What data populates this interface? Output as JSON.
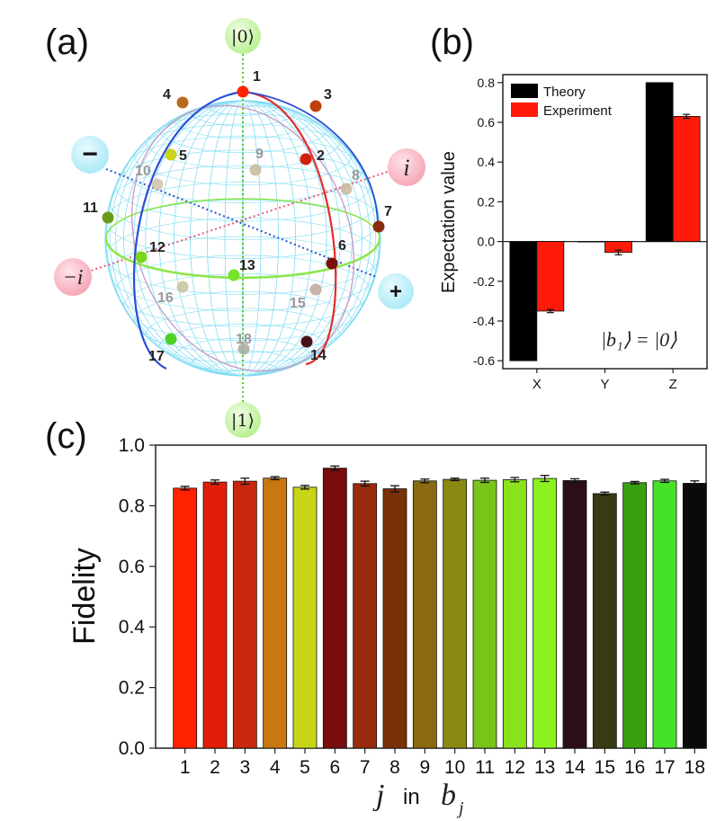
{
  "panels": {
    "a": "(a)",
    "b": "(b)",
    "c": "(c)"
  },
  "colors": {
    "theory": "#000000",
    "experiment": "#ff1a0a",
    "sphere_mesh": "#7fdcf2",
    "equator": "#8ee64a",
    "zaxis": "#55cc22",
    "red_meridian": "#e52b2b",
    "blue_meridian": "#2a4fd6",
    "pink_meridian": "#c9a0c8",
    "pos_bubble": "#bff0fb",
    "imag_bubble": "#f7b6c2",
    "basis_bubble": "#c9f5a7"
  },
  "sphere": {
    "ket0": "|0⟩",
    "ket1": "|1⟩",
    "plus": "+",
    "minus": "−",
    "i": "i",
    "minus_i": "−i",
    "points": [
      {
        "label": "1",
        "color": "#ff2200",
        "front": true
      },
      {
        "label": "2",
        "color": "#d42008",
        "front": true
      },
      {
        "label": "3",
        "color": "#c0400c",
        "front": true
      },
      {
        "label": "4",
        "color": "#b86a18",
        "front": true
      },
      {
        "label": "5",
        "color": "#c9d41a",
        "front": true
      },
      {
        "label": "6",
        "color": "#7a1010",
        "front": true
      },
      {
        "label": "7",
        "color": "#8a2a10",
        "front": true
      },
      {
        "label": "8",
        "color": "#c9b79b",
        "front": false
      },
      {
        "label": "9",
        "color": "#c7b79a",
        "front": false
      },
      {
        "label": "10",
        "color": "#cfc3a8",
        "front": false
      },
      {
        "label": "11",
        "color": "#6a9a1a",
        "front": true
      },
      {
        "label": "12",
        "color": "#7ad41a",
        "front": true
      },
      {
        "label": "13",
        "color": "#76e22a",
        "front": true
      },
      {
        "label": "14",
        "color": "#4a1018",
        "front": true
      },
      {
        "label": "15",
        "color": "#bfa89a",
        "front": false
      },
      {
        "label": "16",
        "color": "#c4c29a",
        "front": false
      },
      {
        "label": "17",
        "color": "#4fd12a",
        "front": true
      },
      {
        "label": "18",
        "color": "#a8a8a0",
        "front": false
      }
    ]
  },
  "chart_data": [
    {
      "type": "bar",
      "panel": "b",
      "categories": [
        "X",
        "Y",
        "Z"
      ],
      "series": [
        {
          "name": "Theory",
          "values": [
            -0.6,
            0.0,
            0.8
          ]
        },
        {
          "name": "Experiment",
          "values": [
            -0.35,
            -0.055,
            0.63
          ],
          "errors": [
            0.008,
            0.012,
            0.01
          ]
        }
      ],
      "ylabel": "Expectation value",
      "ylim": [
        -0.64,
        0.84
      ],
      "yticks": [
        "0.8",
        "0.6",
        "0.4",
        "0.2",
        "0.0",
        "-0.2",
        "-0.4",
        "-0.6"
      ],
      "ytick_values": [
        0.8,
        0.6,
        0.4,
        0.2,
        0.0,
        -0.2,
        -0.4,
        -0.6
      ],
      "annotation": "|b₁⟩ = |0⟩",
      "legend": [
        "Theory",
        "Experiment"
      ],
      "legend_position": "top-left"
    },
    {
      "type": "bar",
      "panel": "c",
      "categories": [
        "1",
        "2",
        "3",
        "4",
        "5",
        "6",
        "7",
        "8",
        "9",
        "10",
        "11",
        "12",
        "13",
        "14",
        "15",
        "16",
        "17",
        "18"
      ],
      "values": [
        0.858,
        0.878,
        0.881,
        0.891,
        0.861,
        0.924,
        0.873,
        0.856,
        0.882,
        0.887,
        0.884,
        0.886,
        0.89,
        0.883,
        0.84,
        0.876,
        0.882,
        0.874
      ],
      "errors": [
        0.006,
        0.007,
        0.01,
        0.005,
        0.006,
        0.007,
        0.008,
        0.01,
        0.006,
        0.004,
        0.007,
        0.007,
        0.01,
        0.006,
        0.005,
        0.004,
        0.005,
        0.008
      ],
      "bar_colors": [
        "#ff2200",
        "#e01e0a",
        "#c8280c",
        "#c8780f",
        "#c8d418",
        "#7a0c0c",
        "#9a2a0c",
        "#7a3008",
        "#8a6a10",
        "#8a8a12",
        "#7ac41a",
        "#8ae21c",
        "#8af21e",
        "#2a1016",
        "#3a3a12",
        "#3aa012",
        "#46e22a",
        "#0a0a0a"
      ],
      "ylabel": "Fidelity",
      "xlabel_j": "j",
      "xlabel_in": "in",
      "xlabel_b": "b",
      "xlabel_sub": "j",
      "ylim": [
        0.0,
        1.0
      ],
      "yticks": [
        "0.0",
        "0.2",
        "0.4",
        "0.6",
        "0.8",
        "1.0"
      ],
      "ytick_values": [
        0.0,
        0.2,
        0.4,
        0.6,
        0.8,
        1.0
      ]
    }
  ]
}
